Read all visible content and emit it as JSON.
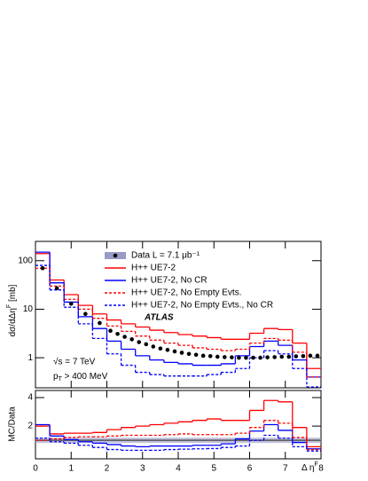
{
  "chart_data": [
    {
      "type": "histogram",
      "ylabel": {
        "text": "dσ/dΔη",
        "sup": "F",
        "unit": "[mb]"
      },
      "log_y": true,
      "ylim": [
        0.24,
        250
      ],
      "yticks": [
        1,
        10,
        100
      ],
      "xlim": [
        0,
        8
      ],
      "bins": [
        0,
        0.4,
        0.8,
        1.2,
        1.6,
        2.0,
        2.4,
        2.8,
        3.2,
        3.6,
        4.0,
        4.4,
        4.8,
        5.2,
        5.6,
        6.0,
        6.4,
        6.8,
        7.2,
        7.6,
        8.0
      ],
      "data": {
        "name": "Data L = 7.1 μb⁻¹",
        "color": "#000000",
        "x": [
          0.2,
          0.6,
          1.0,
          1.4,
          1.8,
          2.1,
          2.3,
          2.5,
          2.7,
          2.9,
          3.1,
          3.3,
          3.5,
          3.7,
          3.9,
          4.1,
          4.3,
          4.5,
          4.7,
          4.9,
          5.1,
          5.3,
          5.5,
          5.7,
          5.9,
          6.1,
          6.3,
          6.5,
          6.7,
          6.9,
          7.1,
          7.3,
          7.5,
          7.7,
          7.9
        ],
        "values": [
          70,
          27,
          13,
          8,
          5.2,
          3.6,
          3.1,
          2.7,
          2.4,
          2.1,
          1.9,
          1.7,
          1.55,
          1.45,
          1.35,
          1.27,
          1.2,
          1.15,
          1.1,
          1.08,
          1.05,
          1.03,
          1.02,
          1.0,
          1.0,
          1.0,
          1.0,
          1.02,
          1.03,
          1.05,
          1.05,
          1.07,
          1.08,
          1.1,
          1.1
        ]
      },
      "series": [
        {
          "name": "H++ UE7-2",
          "color": "#ff0000",
          "dashed": false,
          "values": [
            140,
            40,
            20,
            12,
            8,
            6,
            5,
            4.3,
            3.7,
            3.3,
            3.0,
            2.8,
            2.6,
            2.4,
            2.4,
            3.2,
            4.0,
            3.8,
            2.0,
            0.6
          ]
        },
        {
          "name": "H++ UE7-2, No CR",
          "color": "#0000ff",
          "dashed": false,
          "values": [
            150,
            35,
            14,
            7,
            4,
            2.2,
            1.5,
            1.1,
            0.9,
            0.8,
            0.75,
            0.7,
            0.7,
            0.75,
            1.1,
            1.7,
            2.2,
            1.8,
            0.9,
            0.4
          ]
        },
        {
          "name": "H++ UE7-2, No Empty Evts.",
          "color": "#ff0000",
          "dashed": true,
          "values": [
            70,
            30,
            16,
            10,
            6.5,
            4.5,
            3.5,
            2.8,
            2.3,
            2.0,
            1.8,
            1.6,
            1.5,
            1.4,
            1.5,
            2.0,
            2.5,
            2.3,
            1.3,
            0.4
          ]
        },
        {
          "name": "H++ UE7-2, No Empty Evts., No CR",
          "color": "#0000ff",
          "dashed": true,
          "values": [
            80,
            25,
            11,
            5,
            2.5,
            1.2,
            0.7,
            0.5,
            0.45,
            0.42,
            0.42,
            0.42,
            0.45,
            0.5,
            0.6,
            1.0,
            1.4,
            1.2,
            0.6,
            0.25
          ]
        }
      ],
      "annotations": {
        "experiment": "ATLAS",
        "energy": "√s = 7 TeV",
        "cut": {
          "text": "p",
          "sub": "T",
          "rest": " > 400 MeV"
        }
      }
    },
    {
      "type": "histogram",
      "ylabel": "MC/Data",
      "xlabel": {
        "text": "Δ η",
        "sup": "F"
      },
      "ylim": [
        -0.3,
        4.5
      ],
      "yticks": [
        2,
        4
      ],
      "xlim": [
        0,
        8
      ],
      "xticks": [
        0,
        1,
        2,
        3,
        4,
        5,
        6,
        7,
        8
      ],
      "reference_line": 1,
      "bins": [
        0,
        0.4,
        0.8,
        1.2,
        1.6,
        2.0,
        2.4,
        2.8,
        3.2,
        3.6,
        4.0,
        4.4,
        4.8,
        5.2,
        5.6,
        6.0,
        6.4,
        6.8,
        7.2,
        7.6,
        8.0
      ],
      "series": [
        {
          "color": "#ff0000",
          "dashed": false,
          "values": [
            2.0,
            1.45,
            1.5,
            1.5,
            1.55,
            1.75,
            1.9,
            2.0,
            2.1,
            2.2,
            2.3,
            2.4,
            2.5,
            2.4,
            2.4,
            3.1,
            3.8,
            3.7,
            1.9,
            0.55
          ]
        },
        {
          "color": "#0000ff",
          "dashed": false,
          "values": [
            2.1,
            1.3,
            1.05,
            0.9,
            0.8,
            0.7,
            0.6,
            0.55,
            0.6,
            0.6,
            0.6,
            0.65,
            0.65,
            0.75,
            1.1,
            1.65,
            2.1,
            1.7,
            0.85,
            0.4
          ]
        },
        {
          "color": "#ff0000",
          "dashed": true,
          "values": [
            1.0,
            1.1,
            1.2,
            1.25,
            1.25,
            1.3,
            1.35,
            1.35,
            1.35,
            1.4,
            1.45,
            1.4,
            1.4,
            1.4,
            1.5,
            1.9,
            2.4,
            2.2,
            1.2,
            0.35
          ]
        },
        {
          "color": "#0000ff",
          "dashed": true,
          "values": [
            1.15,
            0.9,
            0.8,
            0.65,
            0.5,
            0.35,
            0.3,
            0.3,
            0.3,
            0.35,
            0.38,
            0.4,
            0.42,
            0.5,
            0.6,
            1.0,
            1.35,
            1.15,
            0.55,
            0.25
          ]
        }
      ]
    }
  ]
}
